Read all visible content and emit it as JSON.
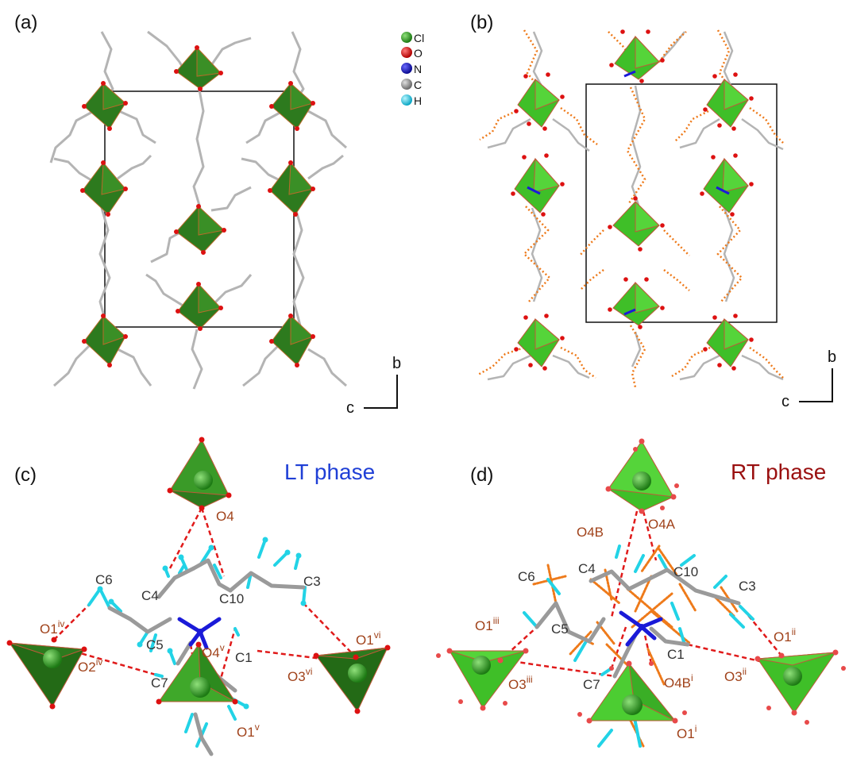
{
  "panels": {
    "a": {
      "label": "(a)"
    },
    "b": {
      "label": "(b)"
    },
    "c": {
      "label": "(c)",
      "phase_title": "LT phase"
    },
    "d": {
      "label": "(d)",
      "phase_title": "RT phase"
    }
  },
  "legend": [
    {
      "symbol": "Cl",
      "color": "#2fa02f"
    },
    {
      "symbol": "O",
      "color": "#dd1111"
    },
    {
      "symbol": "N",
      "color": "#1a1ad8"
    },
    {
      "symbol": "C",
      "color": "#8a8a8a"
    },
    {
      "symbol": "H",
      "color": "#22d3e6"
    }
  ],
  "axes": {
    "b_label": "b",
    "c_label": "c"
  },
  "colors": {
    "lt_title": "#1f3fd6",
    "rt_title": "#9a1010",
    "atom_label_o": "#a0421a",
    "atom_label_c": "#333333",
    "hbond": "#e01a1a",
    "disorder": "#ee7a1a",
    "tetra_dark": "#2d7a1e",
    "tetra_light": "#3fbf28",
    "h_atom": "#22d3e6"
  },
  "panel_c_labels": {
    "O4": "O4",
    "C6": "C6",
    "C4": "C4",
    "C10": "C10",
    "C3": "C3",
    "O1iv": "O1",
    "O1iv_sup": "iv",
    "O2iv": "O2",
    "O2iv_sup": "iv",
    "C5": "C5",
    "O4v": "O4",
    "O4v_sup": "v",
    "C1": "C1",
    "O3vi": "O3",
    "O3vi_sup": "vi",
    "O1vi": "O1",
    "O1vi_sup": "vi",
    "C7": "C7",
    "O1v": "O1",
    "O1v_sup": "v"
  },
  "panel_d_labels": {
    "O4B": "O4B",
    "O4A": "O4A",
    "C6": "C6",
    "C4": "C4",
    "C10": "C10",
    "C3": "C3",
    "O1iii": "O1",
    "O1iii_sup": "iii",
    "C5": "C5",
    "C1": "C1",
    "O1ii": "O1",
    "O1ii_sup": "ii",
    "O3iii": "O3",
    "O3iii_sup": "iii",
    "C7": "C7",
    "O4Bi": "O4B",
    "O4Bi_sup": "i",
    "O3ii": "O3",
    "O3ii_sup": "ii",
    "O1i": "O1",
    "O1i_sup": "i"
  }
}
